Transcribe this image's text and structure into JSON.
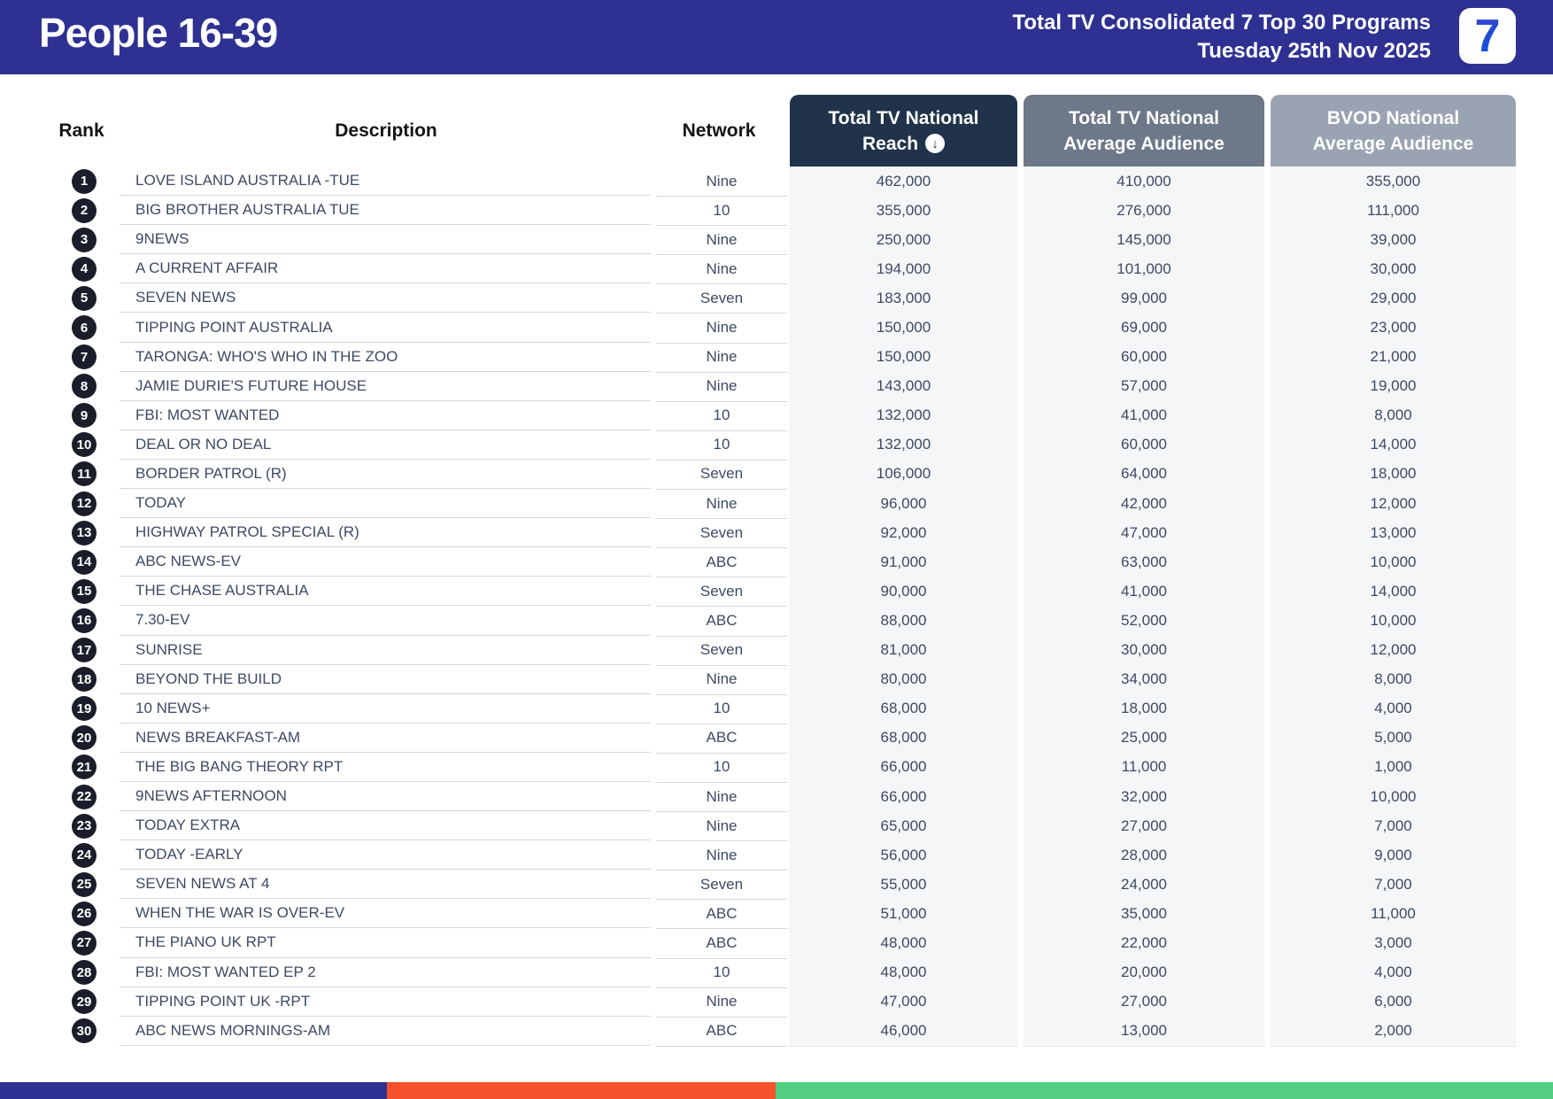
{
  "header": {
    "title": "People 16-39",
    "subtitle_line1": "Total TV Consolidated 7 Top 30 Programs",
    "subtitle_line2": "Tuesday 25th Nov 2025",
    "logo_text": "7"
  },
  "table": {
    "columns": {
      "rank": "Rank",
      "description": "Description",
      "network": "Network",
      "reach_line1": "Total TV National",
      "reach_line2": "Reach",
      "avg_line1": "Total TV National",
      "avg_line2": "Average Audience",
      "bvod_line1": "BVOD National",
      "bvod_line2": "Average Audience"
    },
    "sort_icon_glyph": "↓",
    "rows": [
      {
        "rank": "1",
        "description": "LOVE ISLAND AUSTRALIA -TUE",
        "network": "Nine",
        "reach": "462,000",
        "avg": "410,000",
        "bvod": "355,000"
      },
      {
        "rank": "2",
        "description": "BIG BROTHER AUSTRALIA TUE",
        "network": "10",
        "reach": "355,000",
        "avg": "276,000",
        "bvod": "111,000"
      },
      {
        "rank": "3",
        "description": "9NEWS",
        "network": "Nine",
        "reach": "250,000",
        "avg": "145,000",
        "bvod": "39,000"
      },
      {
        "rank": "4",
        "description": "A CURRENT AFFAIR",
        "network": "Nine",
        "reach": "194,000",
        "avg": "101,000",
        "bvod": "30,000"
      },
      {
        "rank": "5",
        "description": "SEVEN NEWS",
        "network": "Seven",
        "reach": "183,000",
        "avg": "99,000",
        "bvod": "29,000"
      },
      {
        "rank": "6",
        "description": "TIPPING POINT AUSTRALIA",
        "network": "Nine",
        "reach": "150,000",
        "avg": "69,000",
        "bvod": "23,000"
      },
      {
        "rank": "7",
        "description": "TARONGA: WHO'S WHO IN THE ZOO",
        "network": "Nine",
        "reach": "150,000",
        "avg": "60,000",
        "bvod": "21,000"
      },
      {
        "rank": "8",
        "description": "JAMIE DURIE'S FUTURE HOUSE",
        "network": "Nine",
        "reach": "143,000",
        "avg": "57,000",
        "bvod": "19,000"
      },
      {
        "rank": "9",
        "description": "FBI: MOST WANTED",
        "network": "10",
        "reach": "132,000",
        "avg": "41,000",
        "bvod": "8,000"
      },
      {
        "rank": "10",
        "description": "DEAL OR NO DEAL",
        "network": "10",
        "reach": "132,000",
        "avg": "60,000",
        "bvod": "14,000"
      },
      {
        "rank": "11",
        "description": "BORDER PATROL (R)",
        "network": "Seven",
        "reach": "106,000",
        "avg": "64,000",
        "bvod": "18,000"
      },
      {
        "rank": "12",
        "description": "TODAY",
        "network": "Nine",
        "reach": "96,000",
        "avg": "42,000",
        "bvod": "12,000"
      },
      {
        "rank": "13",
        "description": "HIGHWAY PATROL SPECIAL (R)",
        "network": "Seven",
        "reach": "92,000",
        "avg": "47,000",
        "bvod": "13,000"
      },
      {
        "rank": "14",
        "description": "ABC NEWS-EV",
        "network": "ABC",
        "reach": "91,000",
        "avg": "63,000",
        "bvod": "10,000"
      },
      {
        "rank": "15",
        "description": "THE CHASE AUSTRALIA",
        "network": "Seven",
        "reach": "90,000",
        "avg": "41,000",
        "bvod": "14,000"
      },
      {
        "rank": "16",
        "description": "7.30-EV",
        "network": "ABC",
        "reach": "88,000",
        "avg": "52,000",
        "bvod": "10,000"
      },
      {
        "rank": "17",
        "description": "SUNRISE",
        "network": "Seven",
        "reach": "81,000",
        "avg": "30,000",
        "bvod": "12,000"
      },
      {
        "rank": "18",
        "description": "BEYOND THE BUILD",
        "network": "Nine",
        "reach": "80,000",
        "avg": "34,000",
        "bvod": "8,000"
      },
      {
        "rank": "19",
        "description": "10 NEWS+",
        "network": "10",
        "reach": "68,000",
        "avg": "18,000",
        "bvod": "4,000"
      },
      {
        "rank": "20",
        "description": "NEWS BREAKFAST-AM",
        "network": "ABC",
        "reach": "68,000",
        "avg": "25,000",
        "bvod": "5,000"
      },
      {
        "rank": "21",
        "description": "THE BIG BANG THEORY RPT",
        "network": "10",
        "reach": "66,000",
        "avg": "11,000",
        "bvod": "1,000"
      },
      {
        "rank": "22",
        "description": "9NEWS AFTERNOON",
        "network": "Nine",
        "reach": "66,000",
        "avg": "32,000",
        "bvod": "10,000"
      },
      {
        "rank": "23",
        "description": "TODAY EXTRA",
        "network": "Nine",
        "reach": "65,000",
        "avg": "27,000",
        "bvod": "7,000"
      },
      {
        "rank": "24",
        "description": "TODAY -EARLY",
        "network": "Nine",
        "reach": "56,000",
        "avg": "28,000",
        "bvod": "9,000"
      },
      {
        "rank": "25",
        "description": "SEVEN NEWS AT 4",
        "network": "Seven",
        "reach": "55,000",
        "avg": "24,000",
        "bvod": "7,000"
      },
      {
        "rank": "26",
        "description": "WHEN THE WAR IS OVER-EV",
        "network": "ABC",
        "reach": "51,000",
        "avg": "35,000",
        "bvod": "11,000"
      },
      {
        "rank": "27",
        "description": "THE PIANO UK RPT",
        "network": "ABC",
        "reach": "48,000",
        "avg": "22,000",
        "bvod": "3,000"
      },
      {
        "rank": "28",
        "description": "FBI: MOST WANTED EP 2",
        "network": "10",
        "reach": "48,000",
        "avg": "20,000",
        "bvod": "4,000"
      },
      {
        "rank": "29",
        "description": "TIPPING POINT UK -RPT",
        "network": "Nine",
        "reach": "47,000",
        "avg": "27,000",
        "bvod": "6,000"
      },
      {
        "rank": "30",
        "description": "ABC NEWS MORNINGS-AM",
        "network": "ABC",
        "reach": "46,000",
        "avg": "13,000",
        "bvod": "2,000"
      }
    ]
  },
  "colors": {
    "banner_blue": "#2e3192",
    "reach_header": "#20334a",
    "avg_header": "#6d7889",
    "bvod_header": "#9aa3b2",
    "footer_blue": "#2e3192",
    "footer_orange": "#f4512c",
    "footer_green": "#52ce80",
    "rank_badge": "#1b1e2a",
    "table_text": "#3d4a63"
  }
}
